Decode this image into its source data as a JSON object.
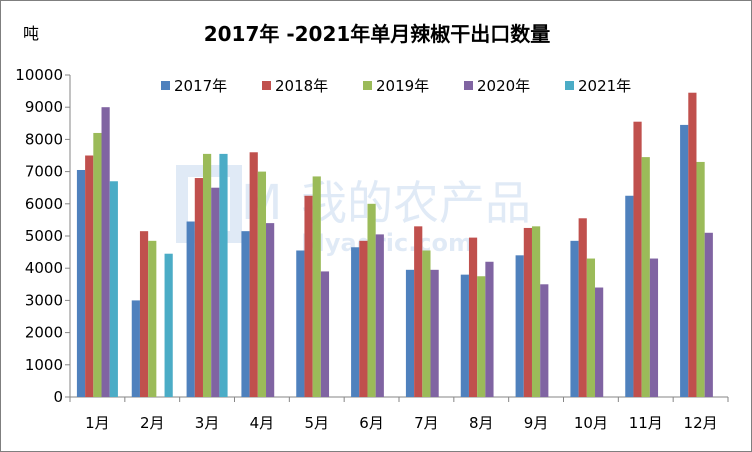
{
  "chart_data": {
    "type": "bar",
    "title": "2017年 -2021年单月辣椒干出口数量",
    "ylabel": "吨",
    "xlabel": "",
    "ylim": [
      0,
      10000
    ],
    "yticks": [
      0,
      1000,
      2000,
      3000,
      4000,
      5000,
      6000,
      7000,
      8000,
      9000,
      10000
    ],
    "grid": false,
    "legend_position": "top",
    "categories": [
      "1月",
      "2月",
      "3月",
      "4月",
      "5月",
      "6月",
      "7月",
      "8月",
      "9月",
      "10月",
      "11月",
      "12月"
    ],
    "series": [
      {
        "name": "2017年",
        "color": "#4F81BD",
        "values": [
          7050,
          3000,
          5450,
          5150,
          4550,
          4650,
          3950,
          3800,
          4400,
          4850,
          6250,
          8450
        ]
      },
      {
        "name": "2018年",
        "color": "#C0504D",
        "values": [
          7500,
          5150,
          6800,
          7600,
          6250,
          4850,
          5300,
          4950,
          5250,
          5550,
          8550,
          9450
        ]
      },
      {
        "name": "2019年",
        "color": "#9BBB59",
        "values": [
          8200,
          4850,
          7550,
          7000,
          6850,
          6000,
          4550,
          3750,
          5300,
          4300,
          7450,
          7300
        ]
      },
      {
        "name": "2020年",
        "color": "#8064A2",
        "values": [
          9000,
          null,
          6500,
          5400,
          3900,
          5050,
          3950,
          4200,
          3500,
          3400,
          4300,
          5100
        ]
      },
      {
        "name": "2021年",
        "color": "#4BACC6",
        "values": [
          6700,
          4450,
          7550,
          null,
          null,
          null,
          null,
          null,
          null,
          null,
          null,
          null
        ]
      }
    ]
  },
  "watermark": {
    "cn": "我的农产品",
    "en": "Myagric.com",
    "logo": "M"
  }
}
